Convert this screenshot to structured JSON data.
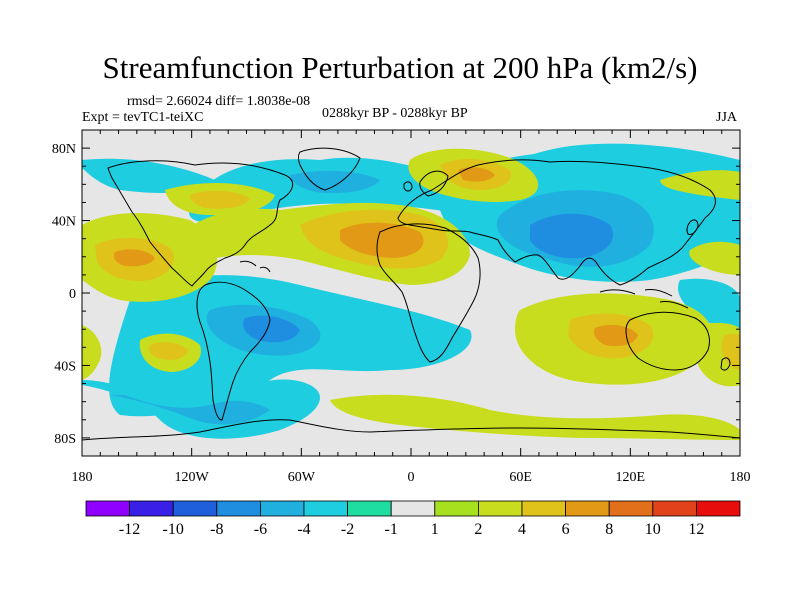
{
  "title": "Streamfunction Perturbation at 200 hPa (km2/s)",
  "stats_line": "rmsd= 2.66024 diff= 1.8038e-08",
  "experiment_line": "Expt = tevTC1-teiXC",
  "period_line": "0288kyr BP - 0288kyr BP",
  "season": "JJA",
  "map": {
    "lon_range": [
      -180,
      180
    ],
    "lat_range": [
      -90,
      90
    ],
    "lat_ticks": [
      {
        "value": 80,
        "label": "80N"
      },
      {
        "value": 40,
        "label": "40N"
      },
      {
        "value": 0,
        "label": "0"
      },
      {
        "value": -40,
        "label": "40S"
      },
      {
        "value": -80,
        "label": "80S"
      }
    ],
    "lon_ticks": [
      {
        "value": -180,
        "label": "180"
      },
      {
        "value": -120,
        "label": "120W"
      },
      {
        "value": -60,
        "label": "60W"
      },
      {
        "value": 0,
        "label": "0"
      },
      {
        "value": 60,
        "label": "60E"
      },
      {
        "value": 120,
        "label": "120E"
      },
      {
        "value": 180,
        "label": "180"
      }
    ]
  },
  "colorbar": {
    "colors": [
      "#8f00ff",
      "#3a1fe6",
      "#1f5fdc",
      "#1f8ee0",
      "#1fb0e0",
      "#1ecde0",
      "#1fdca0",
      "#e6e6e6",
      "#a6e01f",
      "#c9dd1f",
      "#dfc31a",
      "#e29a16",
      "#e2701a",
      "#e2421a",
      "#e80d0d"
    ],
    "labels": [
      "-12",
      "-10",
      "-8",
      "-6",
      "-4",
      "-2",
      "-1",
      "1",
      "2",
      "4",
      "6",
      "8",
      "10",
      "12"
    ]
  }
}
